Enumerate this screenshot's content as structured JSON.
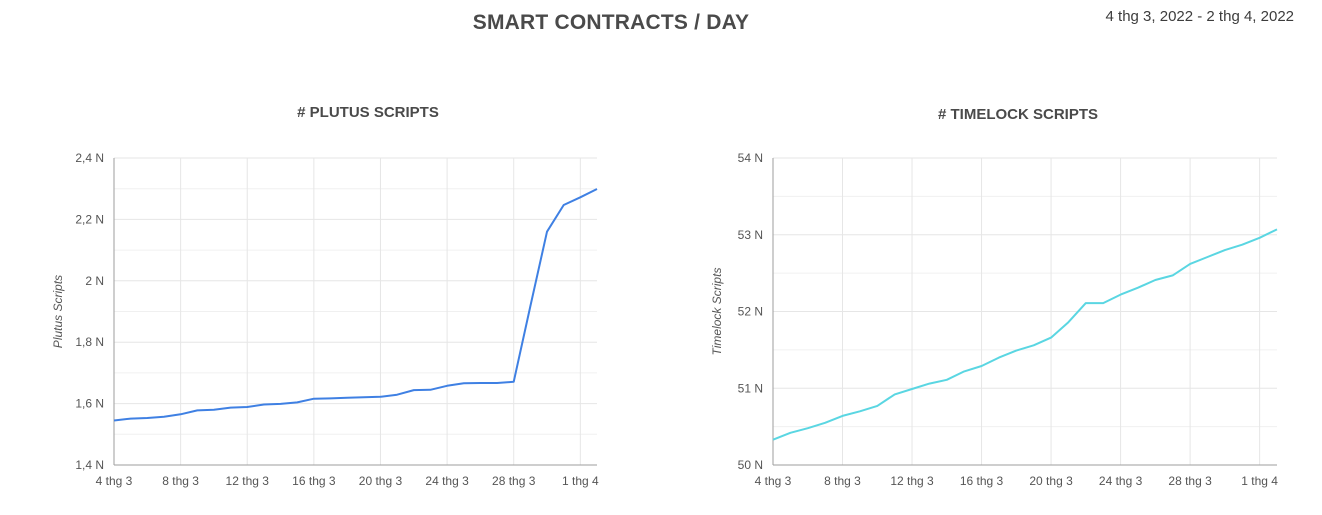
{
  "header": {
    "title": "SMART CONTRACTS / DAY",
    "date_range": "4 thg 3, 2022 - 2 thg 4, 2022"
  },
  "colors": {
    "plutus_line": "#3f80e3",
    "timelock_line": "#5ad6e2",
    "grid": "#e6e6e6",
    "axis": "#9e9e9e"
  },
  "chart_data": [
    {
      "type": "line",
      "title": "# PLUTUS SCRIPTS",
      "ylabel": "Plutus Scripts",
      "xlabel": "",
      "ylim": [
        1.4,
        2.4
      ],
      "y_ticks": [
        1.4,
        1.6,
        1.8,
        2.0,
        2.2,
        2.4
      ],
      "y_tick_labels": [
        "1,4 N",
        "1,6 N",
        "1,8 N",
        "2 N",
        "2,2 N",
        "2,4 N"
      ],
      "x_tick_labels": [
        "4 thg 3",
        "8 thg 3",
        "12 thg 3",
        "16 thg 3",
        "20 thg 3",
        "24 thg 3",
        "28 thg 3",
        "1 thg 4"
      ],
      "x_tick_index": [
        0,
        4,
        8,
        12,
        16,
        20,
        24,
        28
      ],
      "x": [
        "4 thg 3",
        "5 thg 3",
        "6 thg 3",
        "7 thg 3",
        "8 thg 3",
        "9 thg 3",
        "10 thg 3",
        "11 thg 3",
        "12 thg 3",
        "13 thg 3",
        "14 thg 3",
        "15 thg 3",
        "16 thg 3",
        "17 thg 3",
        "18 thg 3",
        "19 thg 3",
        "20 thg 3",
        "21 thg 3",
        "22 thg 3",
        "23 thg 3",
        "24 thg 3",
        "25 thg 3",
        "26 thg 3",
        "27 thg 3",
        "28 thg 3",
        "29 thg 3",
        "30 thg 3",
        "31 thg 3",
        "1 thg 4",
        "2 thg 4"
      ],
      "series": [
        {
          "values": [
            1.545,
            1.551,
            1.553,
            1.557,
            1.565,
            1.578,
            1.58,
            1.587,
            1.589,
            1.597,
            1.599,
            1.604,
            1.616,
            1.617,
            1.619,
            1.621,
            1.622,
            1.629,
            1.644,
            1.645,
            1.658,
            1.666,
            1.667,
            1.667,
            1.671,
            1.918,
            2.16,
            2.247,
            2.272,
            2.299
          ]
        }
      ],
      "grid": true
    },
    {
      "type": "line",
      "title": "# TIMELOCK SCRIPTS",
      "ylabel": "Timelock Scripts",
      "xlabel": "",
      "ylim": [
        50,
        54
      ],
      "y_ticks": [
        50,
        51,
        52,
        53,
        54
      ],
      "y_tick_labels": [
        "50 N",
        "51 N",
        "52 N",
        "53 N",
        "54 N"
      ],
      "x_tick_labels": [
        "4 thg 3",
        "8 thg 3",
        "12 thg 3",
        "16 thg 3",
        "20 thg 3",
        "24 thg 3",
        "28 thg 3",
        "1 thg 4"
      ],
      "x_tick_index": [
        0,
        4,
        8,
        12,
        16,
        20,
        24,
        28
      ],
      "x": [
        "4 thg 3",
        "5 thg 3",
        "6 thg 3",
        "7 thg 3",
        "8 thg 3",
        "9 thg 3",
        "10 thg 3",
        "11 thg 3",
        "12 thg 3",
        "13 thg 3",
        "14 thg 3",
        "15 thg 3",
        "16 thg 3",
        "17 thg 3",
        "18 thg 3",
        "19 thg 3",
        "20 thg 3",
        "21 thg 3",
        "22 thg 3",
        "23 thg 3",
        "24 thg 3",
        "25 thg 3",
        "26 thg 3",
        "27 thg 3",
        "28 thg 3",
        "29 thg 3",
        "30 thg 3",
        "31 thg 3",
        "1 thg 4",
        "2 thg 4"
      ],
      "series": [
        {
          "values": [
            50.33,
            50.42,
            50.48,
            50.55,
            50.64,
            50.7,
            50.77,
            50.92,
            50.99,
            51.06,
            51.11,
            51.22,
            51.29,
            51.4,
            51.49,
            51.56,
            51.66,
            51.86,
            52.11,
            52.11,
            52.22,
            52.31,
            52.41,
            52.47,
            52.62,
            52.71,
            52.8,
            52.87,
            52.96,
            53.07
          ]
        }
      ],
      "grid": true
    }
  ]
}
